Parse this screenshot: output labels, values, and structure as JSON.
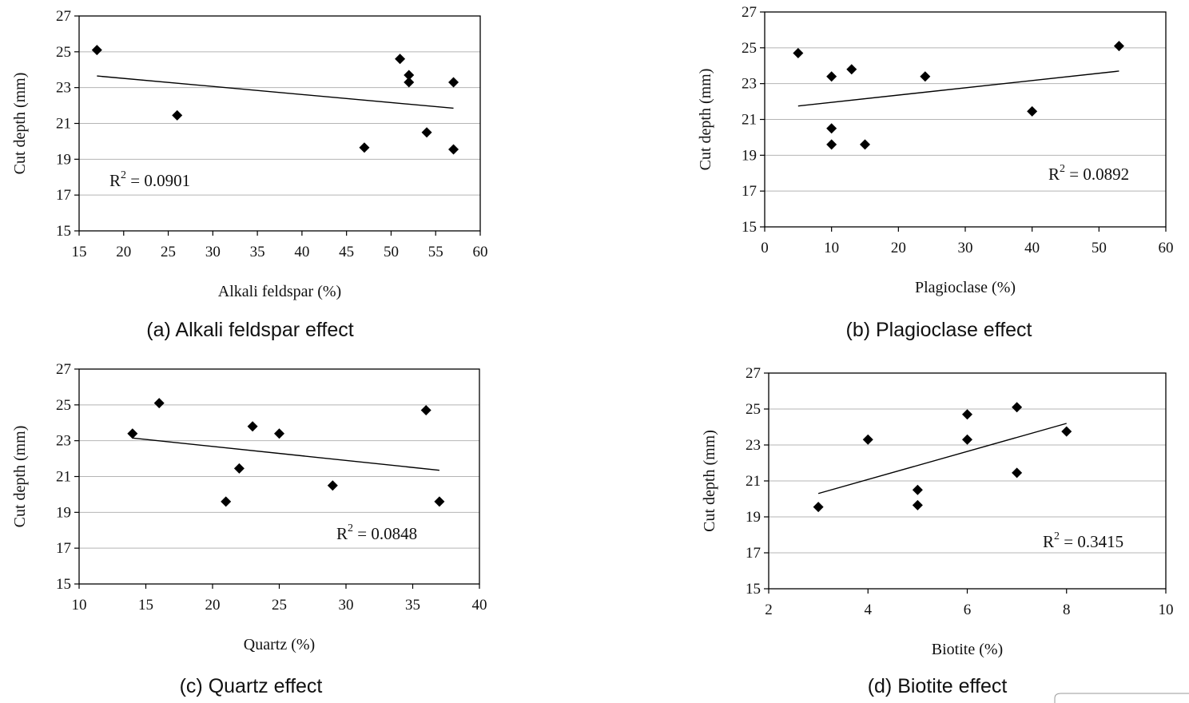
{
  "chart_data": [
    {
      "type": "scatter",
      "caption": "(a)  Alkali  feldspar  effect",
      "xlabel": "Alkali feldspar (%)",
      "ylabel": "Cut depth (mm)",
      "xlim": [
        15,
        60
      ],
      "ylim": [
        15,
        27
      ],
      "xticks": [
        15,
        20,
        25,
        30,
        35,
        40,
        45,
        50,
        55,
        60
      ],
      "yticks": [
        15,
        17,
        19,
        21,
        23,
        25,
        27
      ],
      "grid": "horizontal",
      "r2_label": "R",
      "r2_sup": "2",
      "r2_value": " = 0.0901",
      "r2_position": "bottom-left",
      "points": [
        {
          "x": 17,
          "y": 25.1
        },
        {
          "x": 26,
          "y": 21.45
        },
        {
          "x": 47,
          "y": 19.65
        },
        {
          "x": 51,
          "y": 24.6
        },
        {
          "x": 52,
          "y": 23.7
        },
        {
          "x": 52,
          "y": 23.3
        },
        {
          "x": 54,
          "y": 20.5
        },
        {
          "x": 57,
          "y": 23.3
        },
        {
          "x": 57,
          "y": 19.55
        }
      ],
      "trendline": [
        {
          "x": 17,
          "y": 23.65
        },
        {
          "x": 57,
          "y": 21.85
        }
      ]
    },
    {
      "type": "scatter",
      "caption": "(b)  Plagioclase  effect",
      "xlabel": "Plagioclase (%)",
      "ylabel": "Cut depth (mm)",
      "xlim": [
        0,
        60
      ],
      "ylim": [
        15,
        27
      ],
      "xticks": [
        0,
        10,
        20,
        30,
        40,
        50,
        60
      ],
      "yticks": [
        15,
        17,
        19,
        21,
        23,
        25,
        27
      ],
      "grid": "horizontal",
      "r2_label": "R",
      "r2_sup": "2",
      "r2_value": " = 0.0892",
      "r2_position": "bottom-right",
      "points": [
        {
          "x": 5,
          "y": 24.7
        },
        {
          "x": 10,
          "y": 23.4
        },
        {
          "x": 10,
          "y": 20.5
        },
        {
          "x": 10,
          "y": 19.6
        },
        {
          "x": 13,
          "y": 23.8
        },
        {
          "x": 15,
          "y": 19.6
        },
        {
          "x": 24,
          "y": 23.4
        },
        {
          "x": 40,
          "y": 21.45
        },
        {
          "x": 53,
          "y": 25.1
        }
      ],
      "trendline": [
        {
          "x": 5,
          "y": 21.75
        },
        {
          "x": 53,
          "y": 23.7
        }
      ]
    },
    {
      "type": "scatter",
      "caption": "(c)  Quartz  effect",
      "xlabel": "Quartz (%)",
      "ylabel": "Cut depth (mm)",
      "xlim": [
        10,
        40
      ],
      "ylim": [
        15,
        27
      ],
      "xticks": [
        10,
        15,
        20,
        25,
        30,
        35,
        40
      ],
      "yticks": [
        15,
        17,
        19,
        21,
        23,
        25,
        27
      ],
      "grid": "horizontal",
      "r2_label": "R",
      "r2_sup": "2",
      "r2_value": " = 0.0848",
      "r2_position": "bottom-right",
      "points": [
        {
          "x": 14,
          "y": 23.4
        },
        {
          "x": 16,
          "y": 25.1
        },
        {
          "x": 21,
          "y": 19.6
        },
        {
          "x": 22,
          "y": 21.45
        },
        {
          "x": 23,
          "y": 23.8
        },
        {
          "x": 25,
          "y": 23.4
        },
        {
          "x": 29,
          "y": 20.5
        },
        {
          "x": 36,
          "y": 24.7
        },
        {
          "x": 37,
          "y": 19.6
        }
      ],
      "trendline": [
        {
          "x": 14,
          "y": 23.15
        },
        {
          "x": 37,
          "y": 21.35
        }
      ]
    },
    {
      "type": "scatter",
      "caption": "(d)  Biotite  effect",
      "xlabel": "Biotite (%)",
      "ylabel": "Cut depth (mm)",
      "xlim": [
        2,
        10
      ],
      "ylim": [
        15,
        27
      ],
      "xticks": [
        2,
        4,
        6,
        8,
        10
      ],
      "yticks": [
        15,
        17,
        19,
        21,
        23,
        25,
        27
      ],
      "grid": "horizontal",
      "r2_label": "R",
      "r2_sup": "2",
      "r2_value": " = 0.3415",
      "r2_position": "bottom-right",
      "points": [
        {
          "x": 3,
          "y": 19.55
        },
        {
          "x": 4,
          "y": 23.3
        },
        {
          "x": 5,
          "y": 20.5
        },
        {
          "x": 5,
          "y": 19.65
        },
        {
          "x": 6,
          "y": 24.7
        },
        {
          "x": 6,
          "y": 23.3
        },
        {
          "x": 7,
          "y": 25.1
        },
        {
          "x": 7,
          "y": 21.45
        },
        {
          "x": 8,
          "y": 23.75
        }
      ],
      "trendline": [
        {
          "x": 3,
          "y": 20.3
        },
        {
          "x": 8,
          "y": 24.2
        }
      ]
    }
  ]
}
